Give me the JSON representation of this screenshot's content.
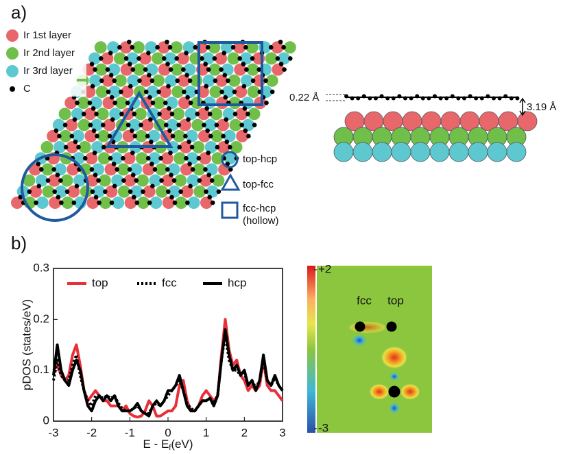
{
  "panel_a": {
    "label": "a)",
    "legend": [
      "Ir 1st layer",
      "Ir 2nd layer",
      "Ir 3rd layer",
      "C"
    ],
    "sites": [
      "top-hcp",
      "top-fcc",
      "fcc-hcp",
      "(hollow)"
    ],
    "side_view": {
      "height_label": "0.22 Å",
      "distance_label": "3.19 Å"
    }
  },
  "panel_b_label": "b)",
  "chart_data": {
    "type": "line",
    "y_label": "pDOS (states/eV)",
    "x_label": "E - E",
    "x_label_sub": "f",
    "x_label_unit": "(eV)",
    "x": [
      -3,
      -2.9,
      -2.8,
      -2.7,
      -2.6,
      -2.5,
      -2.4,
      -2.3,
      -2.2,
      -2.1,
      -2,
      -1.9,
      -1.8,
      -1.7,
      -1.6,
      -1.5,
      -1.4,
      -1.3,
      -1.2,
      -1.1,
      -1,
      -0.9,
      -0.8,
      -0.7,
      -0.6,
      -0.5,
      -0.4,
      -0.3,
      -0.2,
      -0.1,
      0,
      0.1,
      0.2,
      0.3,
      0.4,
      0.5,
      0.6,
      0.7,
      0.8,
      0.9,
      1,
      1.1,
      1.2,
      1.3,
      1.4,
      1.5,
      1.6,
      1.7,
      1.8,
      1.9,
      2,
      2.1,
      2.2,
      2.3,
      2.4,
      2.5,
      2.6,
      2.7,
      2.8,
      2.9,
      3
    ],
    "series": [
      {
        "name": "top",
        "color": "#e8303a",
        "dash": "solid",
        "values": [
          0.1,
          0.11,
          0.09,
          0.08,
          0.09,
          0.13,
          0.15,
          0.11,
          0.06,
          0.04,
          0.05,
          0.06,
          0.05,
          0.04,
          0.04,
          0.03,
          0.03,
          0.03,
          0.02,
          0.03,
          0.015,
          0.01,
          0.008,
          0.01,
          0.02,
          0.04,
          0.03,
          0.01,
          0.01,
          0.015,
          0.02,
          0.02,
          0.03,
          0.07,
          0.08,
          0.04,
          0.02,
          0.02,
          0.03,
          0.05,
          0.06,
          0.05,
          0.04,
          0.05,
          0.13,
          0.2,
          0.14,
          0.11,
          0.12,
          0.09,
          0.08,
          0.06,
          0.07,
          0.06,
          0.07,
          0.12,
          0.07,
          0.06,
          0.06,
          0.05,
          0.04
        ]
      },
      {
        "name": "fcc",
        "color": "#000000",
        "dash": "dotted",
        "values": [
          0.08,
          0.12,
          0.09,
          0.08,
          0.08,
          0.11,
          0.13,
          0.09,
          0.06,
          0.04,
          0.03,
          0.05,
          0.05,
          0.045,
          0.05,
          0.045,
          0.05,
          0.035,
          0.025,
          0.02,
          0.02,
          0.025,
          0.03,
          0.02,
          0.015,
          0.015,
          0.03,
          0.035,
          0.03,
          0.04,
          0.05,
          0.06,
          0.07,
          0.08,
          0.06,
          0.035,
          0.025,
          0.02,
          0.03,
          0.04,
          0.04,
          0.045,
          0.035,
          0.05,
          0.12,
          0.17,
          0.12,
          0.1,
          0.1,
          0.09,
          0.095,
          0.07,
          0.08,
          0.065,
          0.08,
          0.12,
          0.08,
          0.07,
          0.085,
          0.07,
          0.06
        ]
      },
      {
        "name": "hcp",
        "color": "#000000",
        "dash": "solid",
        "values": [
          0.09,
          0.15,
          0.1,
          0.08,
          0.07,
          0.1,
          0.12,
          0.1,
          0.06,
          0.03,
          0.02,
          0.04,
          0.05,
          0.04,
          0.05,
          0.04,
          0.05,
          0.03,
          0.02,
          0.02,
          0.02,
          0.025,
          0.035,
          0.02,
          0.015,
          0.01,
          0.03,
          0.04,
          0.03,
          0.04,
          0.06,
          0.06,
          0.07,
          0.09,
          0.06,
          0.03,
          0.02,
          0.02,
          0.03,
          0.04,
          0.04,
          0.045,
          0.03,
          0.05,
          0.12,
          0.18,
          0.13,
          0.1,
          0.11,
          0.09,
          0.1,
          0.07,
          0.08,
          0.06,
          0.08,
          0.13,
          0.08,
          0.07,
          0.09,
          0.07,
          0.06
        ]
      }
    ],
    "xlim": [
      -3,
      3
    ],
    "xticks": [
      -3,
      -2,
      -1,
      0,
      1,
      2,
      3
    ],
    "ylim": [
      0,
      0.3
    ],
    "yticks": [
      0,
      0.1,
      0.2,
      0.3
    ],
    "legend": "top",
    "grid": false
  },
  "colormap": {
    "ticks": [
      {
        "value": 2,
        "label": "+2"
      },
      -3
    ],
    "labels": [
      "fcc",
      "top"
    ]
  }
}
